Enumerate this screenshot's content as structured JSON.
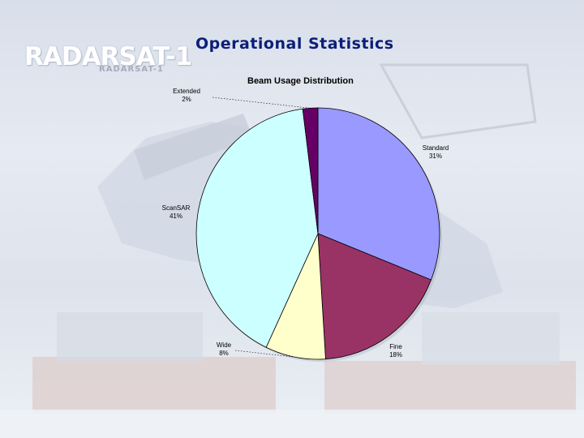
{
  "header": {
    "logo_text": "RADARSAT-1",
    "logo_subtext": "RADARSAT-1",
    "title": "Operational Statistics"
  },
  "chart_data": {
    "type": "pie",
    "title": "Beam Usage Distribution",
    "slices": [
      {
        "label": "Standard",
        "value": 31,
        "percent_label": "31%",
        "color": "#9999ff"
      },
      {
        "label": "Fine",
        "value": 18,
        "percent_label": "18%",
        "color": "#993366"
      },
      {
        "label": "Wide",
        "value": 8,
        "percent_label": "8%",
        "color": "#ffffcc"
      },
      {
        "label": "ScanSAR",
        "value": 41,
        "percent_label": "41%",
        "color": "#ccffff"
      },
      {
        "label": "Extended",
        "value": 2,
        "percent_label": "2%",
        "color": "#660066"
      }
    ],
    "start_angle_deg": 0,
    "direction": "clockwise",
    "legend": "none"
  }
}
